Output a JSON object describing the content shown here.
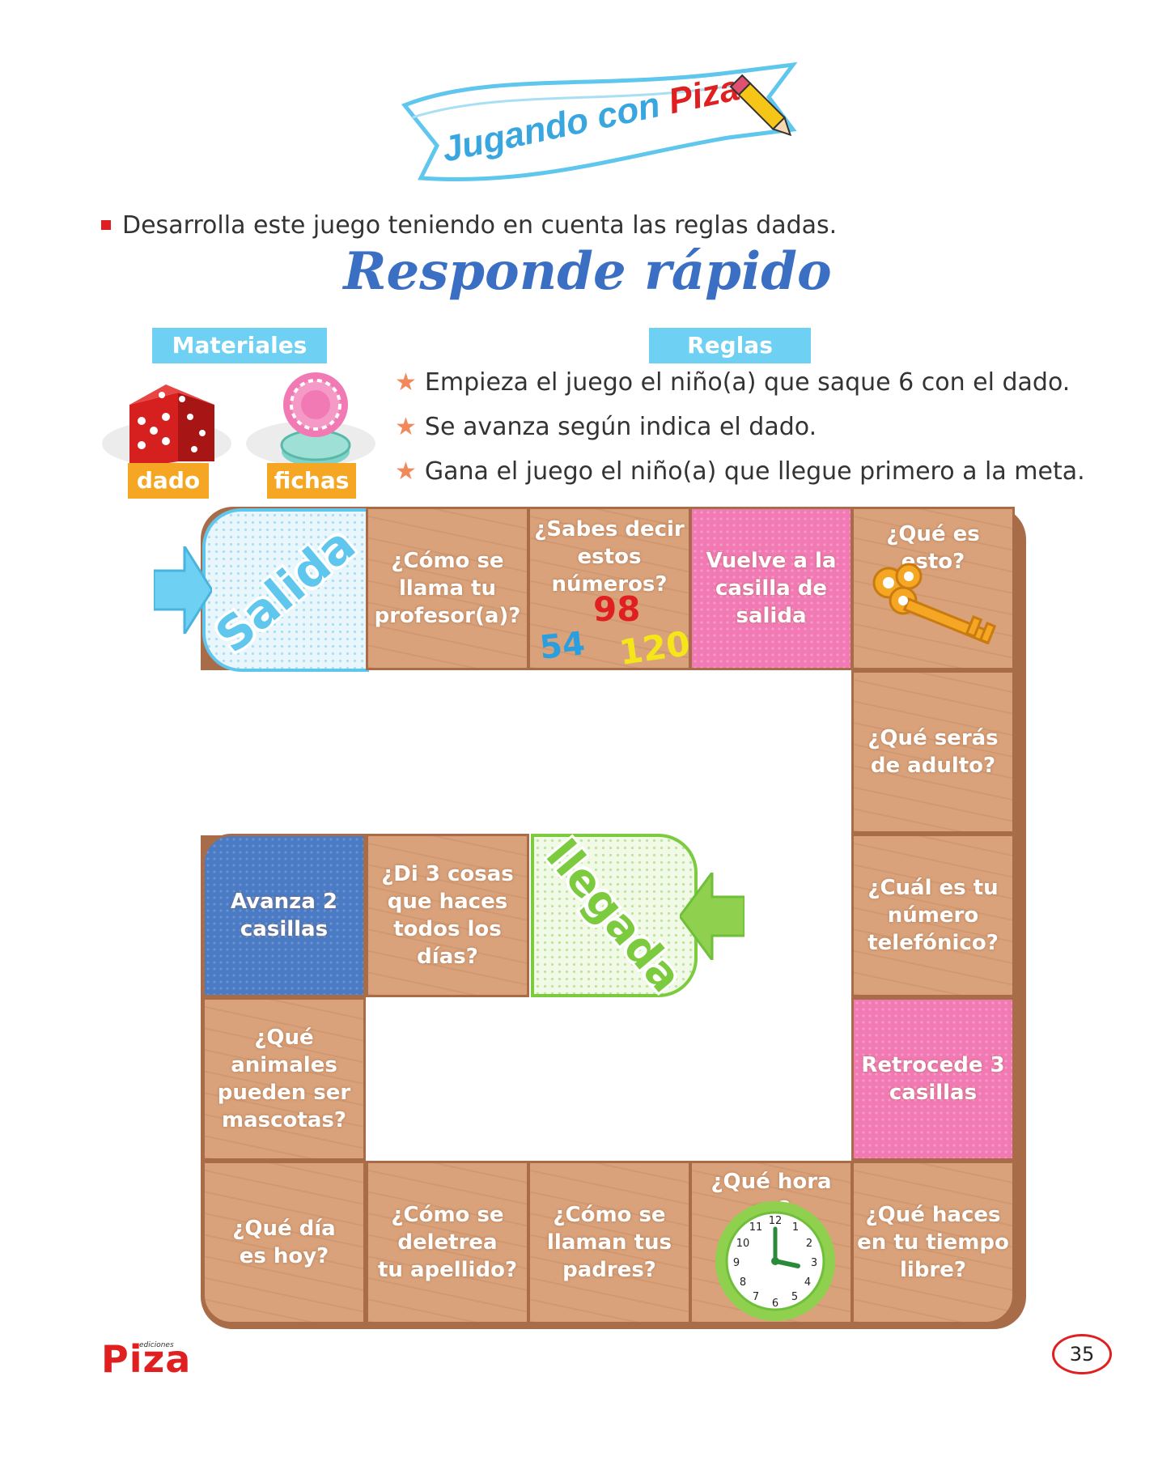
{
  "banner": {
    "text_part1": "Jugando con",
    "text_part2": "Piza"
  },
  "instruction": "Desarrolla este juego teniendo en cuenta las reglas dadas.",
  "title": "Responde rápido",
  "materials": {
    "label": "Materiales",
    "items": [
      {
        "name": "dado",
        "icon": "dice-icon"
      },
      {
        "name": "fichas",
        "icon": "chips-icon"
      }
    ]
  },
  "rules": {
    "label": "Reglas",
    "items": [
      "Empieza el juego el niño(a) que saque 6 con el dado.",
      "Se avanza según indica el dado.",
      "Gana el juego el niño(a) que llegue primero a la meta."
    ]
  },
  "board": {
    "start": "Salida",
    "finish": "llegada",
    "cells": {
      "c1": [
        "¿Cómo se",
        "llama tu",
        "profesor(a)?"
      ],
      "c2": [
        "¿Sabes decir",
        "estos",
        "números?"
      ],
      "c2_numbers": [
        "98",
        "54",
        "120"
      ],
      "c3": [
        "Vuelve a la",
        "casilla de",
        "salida"
      ],
      "c4": [
        "¿Qué es esto?"
      ],
      "c5": [
        "¿Qué serás",
        "de adulto?"
      ],
      "c6": [
        "¿Cuál es tu",
        "número",
        "telefónico?"
      ],
      "c7": [
        "Retrocede 3",
        "casillas"
      ],
      "c8": [
        "¿Qué haces",
        "en tu tiempo",
        "libre?"
      ],
      "c9": [
        "¿Qué hora es?"
      ],
      "c10": [
        "¿Cómo se",
        "llaman tus",
        "padres?"
      ],
      "c11": [
        "¿Cómo se",
        "deletrea",
        "tu apellido?"
      ],
      "c12": [
        "¿Qué día",
        "es hoy?"
      ],
      "c13": [
        "¿Qué animales",
        "pueden ser",
        "mascotas?"
      ],
      "c14": [
        "Avanza 2",
        "casillas"
      ],
      "c15": [
        "¿Di 3 cosas",
        "que haces",
        "todos los días?"
      ]
    },
    "clock_numbers": [
      "12",
      "1",
      "2",
      "3",
      "4",
      "5",
      "6",
      "7",
      "8",
      "9",
      "10",
      "11"
    ]
  },
  "footer": {
    "brand_small": "ediciones",
    "brand": "Piza",
    "page_number": "35"
  },
  "colors": {
    "wood": "#d9a27a",
    "pink": "#f27ab4",
    "blue": "#4a7bc4",
    "start": "#5fc6ee",
    "finish": "#7ccb3e",
    "title": "#3a6fc4"
  }
}
